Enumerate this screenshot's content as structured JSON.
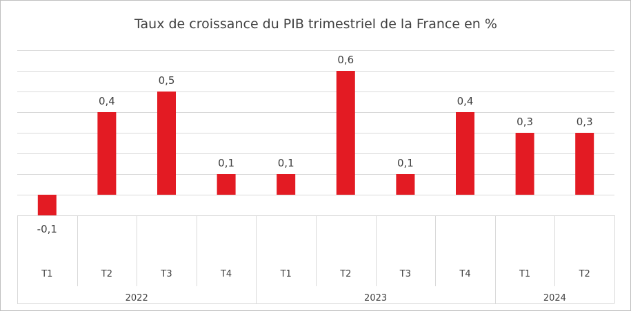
{
  "chart_data": {
    "type": "bar",
    "title": "Taux de croissance du PIB trimestriel de la France en %",
    "xlabel": "",
    "ylabel": "",
    "categories": [
      "T1",
      "T2",
      "T3",
      "T4",
      "T1",
      "T2",
      "T3",
      "T4",
      "T1",
      "T2"
    ],
    "groups": [
      {
        "label": "2022",
        "count": 4
      },
      {
        "label": "2023",
        "count": 4
      },
      {
        "label": "2024",
        "count": 2
      }
    ],
    "values": [
      -0.1,
      0.4,
      0.5,
      0.1,
      0.1,
      0.6,
      0.1,
      0.4,
      0.3,
      0.3
    ],
    "data_labels": [
      "-0,1",
      "0,4",
      "0,5",
      "0,1",
      "0,1",
      "0,6",
      "0,1",
      "0,4",
      "0,3",
      "0,3"
    ],
    "ylim": [
      -0.1,
      0.7
    ],
    "gridline_step": 0.1,
    "grid": true,
    "legend": "none",
    "bar_color": "#e31b23",
    "grid_color": "#d9d9d9"
  }
}
